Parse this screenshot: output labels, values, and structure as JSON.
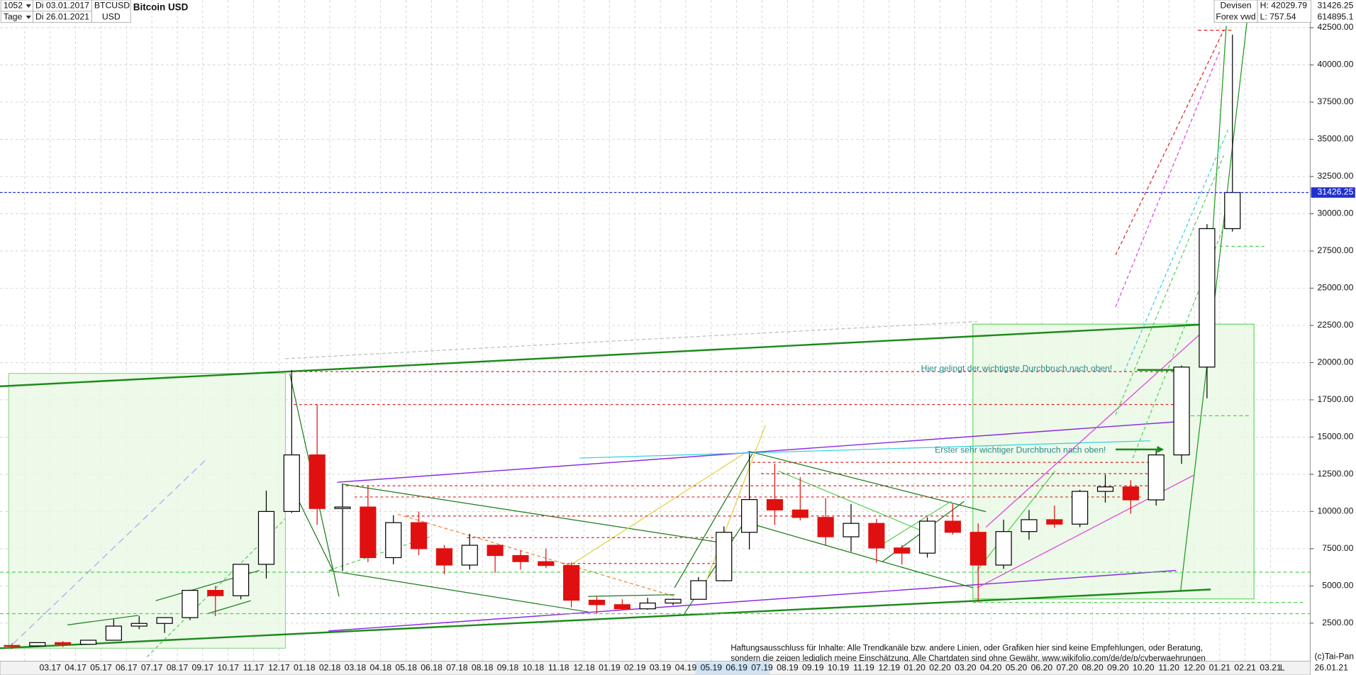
{
  "header": {
    "bars": "1052",
    "period": "Tage",
    "start": "Di 03.01.2017",
    "end": "Di 26.01.2021",
    "symbol": "BTCUSD",
    "currency": "USD",
    "market": "Devisen",
    "source": "Forex vwd",
    "high": "H: 42029.79",
    "low": "L: 757.54",
    "last": "31426.25",
    "volume": "614895.1"
  },
  "footer": {
    "date": "26.01.21",
    "scale": "L",
    "copyright": "(c)Tai-Pan"
  },
  "chart_data": {
    "type": "candlestick",
    "title": "Bitcoin USD",
    "categories": [
      null,
      null,
      "03.17",
      "04.17",
      "05.17",
      "06.17",
      "07.17",
      "08.17",
      "09.17",
      "10.17",
      "11.17",
      "12.17",
      "01.18",
      "02.18",
      "03.18",
      "04.18",
      "05.18",
      "06.18",
      "07.18",
      "08.18",
      "09.18",
      "10.18",
      "11.18",
      "12.18",
      "01.19",
      "02.19",
      "03.19",
      "04.19",
      "05.19",
      "06.19",
      "07.19",
      "08.19",
      "09.19",
      "10.19",
      "11.19",
      "12.19",
      "01.20",
      "02.20",
      "03.20",
      "04.20",
      "05.20",
      "06.20",
      "07.20",
      "08.20",
      "09.20",
      "10.20",
      "11.20",
      "12.20",
      "01.21",
      "02.21",
      "03.21"
    ],
    "open": [
      1000,
      970,
      1190,
      1080,
      1350,
      2300,
      2480,
      2870,
      4700,
      4340,
      6450,
      10000,
      13800,
      10200,
      10300,
      6900,
      9250,
      7500,
      6400,
      7730,
      7040,
      6630,
      6370,
      4040,
      3740,
      3460,
      3850,
      4100,
      5350,
      8600,
      10800,
      10100,
      9600,
      8300,
      9200,
      7550,
      7200,
      9350,
      8600,
      6400,
      8650,
      9450,
      9150,
      11350,
      11650,
      10780,
      13800,
      19700,
      29000,
      null,
      null
    ],
    "high": [
      1150,
      1200,
      1290,
      1350,
      2760,
      2980,
      2900,
      4750,
      5000,
      6450,
      11400,
      19500,
      17200,
      11800,
      11700,
      9750,
      10000,
      7750,
      8500,
      7760,
      7400,
      7500,
      6600,
      4300,
      4100,
      4200,
      4150,
      5600,
      9000,
      13900,
      13200,
      12300,
      10900,
      10500,
      9500,
      7750,
      9600,
      10500,
      9200,
      9450,
      10100,
      10400,
      11450,
      12480,
      12100,
      14100,
      19800,
      29300,
      42029.79,
      null,
      null
    ],
    "low": [
      757.54,
      920,
      890,
      1060,
      1350,
      2100,
      1840,
      2700,
      2970,
      4100,
      5500,
      9900,
      9100,
      6000,
      6600,
      6450,
      7060,
      5780,
      6100,
      5880,
      6100,
      6200,
      3560,
      3130,
      3400,
      3400,
      3700,
      4100,
      5300,
      7450,
      9100,
      9400,
      7700,
      7300,
      6550,
      6430,
      6900,
      8450,
      3900,
      6150,
      8100,
      8900,
      8950,
      10600,
      9850,
      10400,
      13200,
      17600,
      28800,
      null,
      null
    ],
    "close": [
      970,
      1190,
      1080,
      1350,
      2300,
      2480,
      2870,
      4700,
      4340,
      6450,
      10000,
      13800,
      10200,
      10300,
      6900,
      9250,
      7500,
      6400,
      7730,
      7040,
      6630,
      6370,
      4040,
      3740,
      3460,
      3850,
      4100,
      5350,
      8600,
      10800,
      10100,
      9600,
      8300,
      9200,
      7550,
      7200,
      9350,
      8600,
      6400,
      8650,
      9450,
      9150,
      11350,
      11650,
      10780,
      13800,
      19700,
      29000,
      31426.25,
      null,
      null
    ],
    "up_color": "#000000",
    "down_color": "#e01010",
    "last_price": 31426.25,
    "last_price_color": "#1f2fd0",
    "ylim": [
      0,
      44400
    ],
    "yticks": [
      {
        "value": 2500,
        "label": "2500.00"
      },
      {
        "value": 5000,
        "label": "5000.00"
      },
      {
        "value": 7500,
        "label": "7500.00"
      },
      {
        "value": 10000,
        "label": "10000.00"
      },
      {
        "value": 12500,
        "label": "12500.00"
      },
      {
        "value": 15000,
        "label": "15000.00"
      },
      {
        "value": 17500,
        "label": "17500.00"
      },
      {
        "value": 20000,
        "label": "20000.00"
      },
      {
        "value": 22500,
        "label": "22500.00"
      },
      {
        "value": 25000,
        "label": "25000.00"
      },
      {
        "value": 27500,
        "label": "27500.00"
      },
      {
        "value": 30000,
        "label": "30000.00"
      },
      {
        "value": 32500,
        "label": "32500.00"
      },
      {
        "value": 35000,
        "label": "35000.00"
      },
      {
        "value": 37500,
        "label": "37500.00"
      },
      {
        "value": 40000,
        "label": "40000.00"
      },
      {
        "value": 42500,
        "label": "42500.00"
      }
    ],
    "grid": true,
    "annotations": [
      "Hier gelingt der wichtigste Durchbruch nach oben!",
      "Erster sehr wichtiger Durchbruch nach oben!"
    ],
    "disclaimer": [
      "Haftungsausschluss für Inhalte: Alle Trendkanäle bzw. andere Linien, oder Grafiken hier sind keine Empfehlungen, oder Beratung,",
      "sondern die zeigen lediglich meine  Einschätzung. Alle Chartdaten sind ohne Gewähr.  www.wikifolio.com/de/de/p/cyberwaehrungen"
    ]
  }
}
